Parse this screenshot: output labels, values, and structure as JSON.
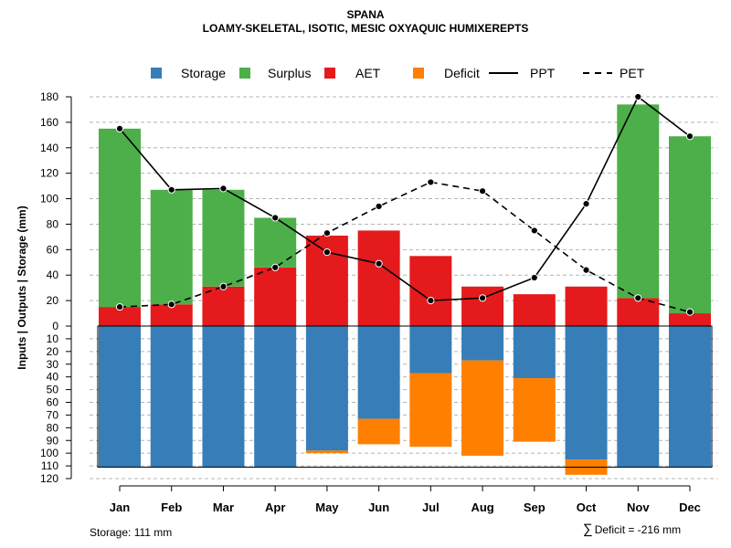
{
  "chart_data": {
    "type": "bar",
    "title": "SPANA",
    "subtitle": "LOAMY-SKELETAL, ISOTIC, MESIC OXYAQUIC HUMIXEREPTS",
    "ylabel": "Inputs | Outputs | Storage    (mm)",
    "categories": [
      "Jan",
      "Feb",
      "Mar",
      "Apr",
      "May",
      "Jun",
      "Jul",
      "Aug",
      "Sep",
      "Oct",
      "Nov",
      "Dec"
    ],
    "ylim_upper": [
      0,
      180
    ],
    "ylim_lower": [
      0,
      120
    ],
    "yticks_upper": [
      "0",
      "20",
      "40",
      "60",
      "80",
      "100",
      "120",
      "140",
      "160",
      "180"
    ],
    "yticks_lower": [
      "10",
      "20",
      "30",
      "40",
      "50",
      "60",
      "70",
      "80",
      "90",
      "100",
      "110",
      "120"
    ],
    "legend": [
      {
        "label": "Storage",
        "kind": "box",
        "color": "#377eb8"
      },
      {
        "label": "Surplus",
        "kind": "box",
        "color": "#4daf4a"
      },
      {
        "label": "AET",
        "kind": "box",
        "color": "#e41a1c"
      },
      {
        "label": "Deficit",
        "kind": "box",
        "color": "#ff7f00"
      },
      {
        "label": "PPT",
        "kind": "line",
        "color": "#000000"
      },
      {
        "label": "PET",
        "kind": "dashed",
        "color": "#000000"
      }
    ],
    "series": [
      {
        "name": "AET",
        "color": "#e41a1c",
        "values": [
          15,
          17,
          31,
          46,
          71,
          75,
          55,
          31,
          25,
          31,
          22,
          10
        ]
      },
      {
        "name": "Surplus",
        "color": "#4daf4a",
        "values": [
          140,
          90,
          76,
          39,
          0,
          0,
          0,
          0,
          0,
          0,
          152,
          139
        ]
      },
      {
        "name": "Storage",
        "color": "#377eb8",
        "values": [
          111,
          111,
          111,
          111,
          98,
          73,
          37,
          27,
          41,
          105,
          111,
          111
        ]
      },
      {
        "name": "Deficit",
        "color": "#ff7f00",
        "values": [
          0,
          0,
          0,
          0,
          2,
          20,
          58,
          75,
          50,
          12,
          0,
          0
        ]
      },
      {
        "name": "PPT",
        "color": "#000000",
        "values": [
          155,
          107,
          108,
          85,
          58,
          49,
          20,
          22,
          38,
          96,
          180,
          149
        ]
      },
      {
        "name": "PET",
        "color": "#000000",
        "values": [
          15,
          17,
          31,
          46,
          73,
          94,
          113,
          106,
          75,
          44,
          22,
          11
        ]
      }
    ],
    "storage_capacity": 111,
    "storage_label": "Storage: 111 mm",
    "deficit_label": "Deficit = -216 mm"
  }
}
